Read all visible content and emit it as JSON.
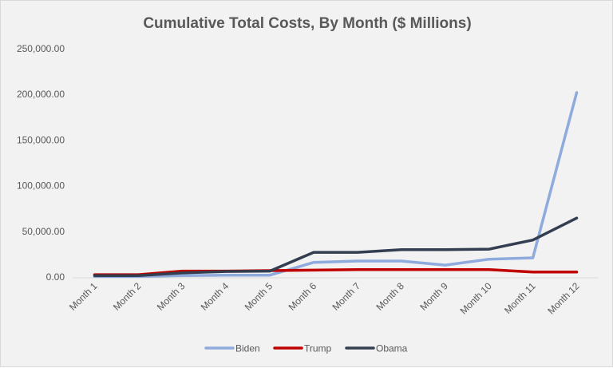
{
  "chart_data": {
    "type": "line",
    "title": "Cumulative Total Costs, By Month ($ Millions)",
    "xlabel": "",
    "ylabel": "",
    "categories": [
      "Month 1",
      "Month 2",
      "Month 3",
      "Month 4",
      "Month 5",
      "Month 6",
      "Month 7",
      "Month 8",
      "Month 9",
      "Month 10",
      "Month 11",
      "Month 12"
    ],
    "ylim": [
      0,
      250000
    ],
    "yticks": [
      0,
      50000,
      100000,
      150000,
      200000,
      250000
    ],
    "ytick_labels": [
      "0.00",
      "50,000.00",
      "100,000.00",
      "150,000.00",
      "200,000.00",
      "250,000.00"
    ],
    "grid": false,
    "legend_position": "bottom",
    "series": [
      {
        "name": "Biden",
        "color": "#8faadc",
        "values": [
          500,
          500,
          1500,
          2000,
          2000,
          16000,
          17500,
          17500,
          13000,
          19500,
          21000,
          202000
        ]
      },
      {
        "name": "Trump",
        "color": "#c00000",
        "values": [
          2500,
          2500,
          6500,
          6500,
          7000,
          7500,
          8000,
          8000,
          8000,
          8000,
          5500,
          5500
        ]
      },
      {
        "name": "Obama",
        "color": "#333f50",
        "values": [
          1500,
          1500,
          4500,
          6000,
          6500,
          27000,
          27000,
          30000,
          30000,
          30500,
          40500,
          64500
        ]
      }
    ]
  }
}
